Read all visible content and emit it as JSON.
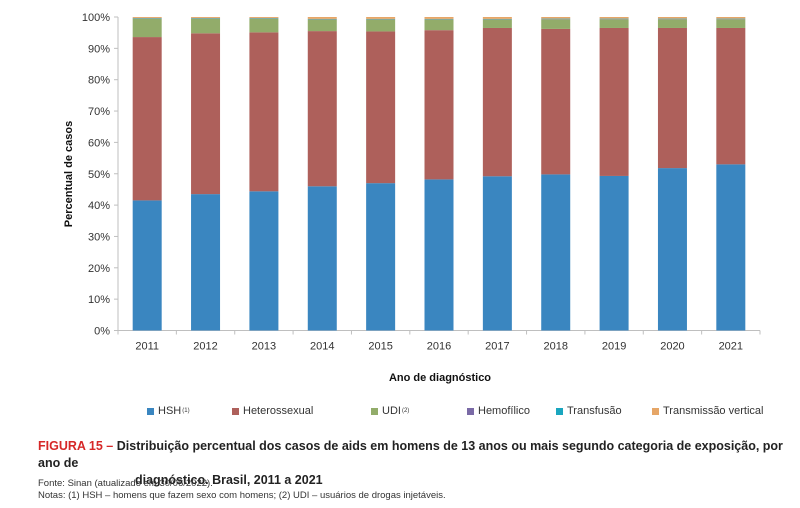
{
  "chart_data": {
    "type": "bar",
    "stacked": true,
    "title": "",
    "xlabel": "Ano de diagnóstico",
    "ylabel": "Percentual de casos",
    "ylim": [
      0,
      100
    ],
    "yticks": [
      "0%",
      "10%",
      "20%",
      "30%",
      "40%",
      "50%",
      "60%",
      "70%",
      "80%",
      "90%",
      "100%"
    ],
    "categories": [
      "2011",
      "2012",
      "2013",
      "2014",
      "2015",
      "2016",
      "2017",
      "2018",
      "2019",
      "2020",
      "2021"
    ],
    "legend_position": "bottom",
    "series": [
      {
        "name": "HSH",
        "superscript": "(1)",
        "color": "#3a86c0",
        "values": [
          41.5,
          43.5,
          44.4,
          46.0,
          47.0,
          48.2,
          49.2,
          49.8,
          49.3,
          51.8,
          53.0
        ]
      },
      {
        "name": "Heterossexual",
        "superscript": "",
        "color": "#ae605b",
        "values": [
          52.1,
          51.3,
          50.7,
          49.5,
          48.4,
          47.6,
          47.3,
          46.4,
          47.2,
          44.7,
          43.5
        ]
      },
      {
        "name": "UDI",
        "superscript": "(2)",
        "color": "#92ac6a",
        "values": [
          5.9,
          4.7,
          4.4,
          3.7,
          3.8,
          3.4,
          2.7,
          3.1,
          2.8,
          2.8,
          2.8
        ]
      },
      {
        "name": "Hemofílico",
        "superscript": "",
        "color": "#7a6aa6",
        "values": [
          0.1,
          0.1,
          0.1,
          0.1,
          0.1,
          0.1,
          0.1,
          0.1,
          0.1,
          0.1,
          0.1
        ]
      },
      {
        "name": "Transfusão",
        "superscript": "",
        "color": "#1aa6bf",
        "values": [
          0.1,
          0.1,
          0.1,
          0.1,
          0.1,
          0.1,
          0.1,
          0.1,
          0.1,
          0.1,
          0.1
        ]
      },
      {
        "name": "Transmissão vertical",
        "superscript": "",
        "color": "#e6a667",
        "values": [
          0.3,
          0.3,
          0.3,
          0.6,
          0.6,
          0.6,
          0.6,
          0.5,
          0.5,
          0.5,
          0.5
        ]
      }
    ]
  },
  "caption": {
    "label": "FIGURA 15 –",
    "text_line1": "Distribuição percentual dos casos de aids em homens de 13 anos ou mais segundo categoria de exposição, por ano de",
    "text_line2": "diagnóstico. Brasil, 2011 a 2021"
  },
  "source": {
    "fonte": "Fonte: Sinan (atualizado em 30/06/2022).",
    "notas": "Notas: (1) HSH – homens que fazem sexo com homens; (2) UDI – usuários de drogas injetáveis."
  }
}
